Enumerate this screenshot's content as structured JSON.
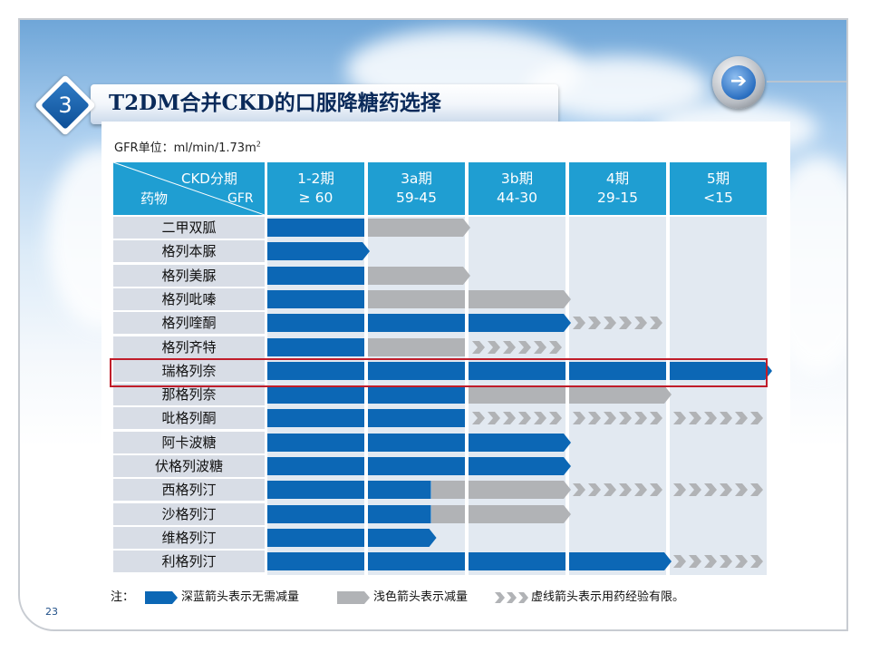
{
  "badge_number": "3",
  "title": "T2DM合并CKD的口服降糖药选择",
  "unit_label": "GFR单位：ml/min/1.73m",
  "unit_superscript": "2",
  "header": {
    "ckd_label": "CKD分期",
    "drug_label": "药物",
    "gfr_label": "GFR",
    "columns": [
      {
        "stage": "1-2期",
        "range": "≥ 60"
      },
      {
        "stage": "3a期",
        "range": "59-45"
      },
      {
        "stage": "3b期",
        "range": "44-30"
      },
      {
        "stage": "4期",
        "range": "29-15"
      },
      {
        "stage": "5期",
        "range": "<15"
      }
    ]
  },
  "drugs": [
    {
      "name": "二甲双胍",
      "segments": [
        {
          "type": "dark",
          "from": 0,
          "to": 1
        },
        {
          "type": "light",
          "from": 1,
          "to": 2,
          "arrow": true
        }
      ]
    },
    {
      "name": "格列本脲",
      "segments": [
        {
          "type": "dark",
          "from": 0,
          "to": 1,
          "arrow": true
        }
      ]
    },
    {
      "name": "格列美脲",
      "segments": [
        {
          "type": "dark",
          "from": 0,
          "to": 1
        },
        {
          "type": "light",
          "from": 1,
          "to": 2,
          "arrow": true
        }
      ]
    },
    {
      "name": "格列吡嗪",
      "segments": [
        {
          "type": "dark",
          "from": 0,
          "to": 1
        },
        {
          "type": "light",
          "from": 1,
          "to": 2
        },
        {
          "type": "light",
          "from": 2,
          "to": 3,
          "arrow": true
        }
      ]
    },
    {
      "name": "格列喹酮",
      "segments": [
        {
          "type": "dark",
          "from": 0,
          "to": 1
        },
        {
          "type": "dark",
          "from": 1,
          "to": 2
        },
        {
          "type": "dark",
          "from": 2,
          "to": 3,
          "arrow": true
        },
        {
          "type": "dashed",
          "from": 3,
          "to": 4
        }
      ]
    },
    {
      "name": "格列齐特",
      "segments": [
        {
          "type": "dark",
          "from": 0,
          "to": 1
        },
        {
          "type": "light",
          "from": 1,
          "to": 2
        },
        {
          "type": "dashed",
          "from": 2,
          "to": 3
        }
      ]
    },
    {
      "name": "瑞格列奈",
      "segments": [
        {
          "type": "dark",
          "from": 0,
          "to": 1
        },
        {
          "type": "dark",
          "from": 1,
          "to": 2
        },
        {
          "type": "dark",
          "from": 2,
          "to": 3
        },
        {
          "type": "dark",
          "from": 3,
          "to": 4
        },
        {
          "type": "dark",
          "from": 4,
          "to": 5,
          "arrow": true
        }
      ]
    },
    {
      "name": "那格列奈",
      "segments": [
        {
          "type": "dark",
          "from": 0,
          "to": 1
        },
        {
          "type": "dark",
          "from": 1,
          "to": 2
        },
        {
          "type": "light",
          "from": 2,
          "to": 3
        },
        {
          "type": "light",
          "from": 3,
          "to": 4,
          "arrow": true
        }
      ]
    },
    {
      "name": "吡格列酮",
      "segments": [
        {
          "type": "dark",
          "from": 0,
          "to": 1
        },
        {
          "type": "dark",
          "from": 1,
          "to": 2
        },
        {
          "type": "dashed",
          "from": 2,
          "to": 3
        },
        {
          "type": "dashed",
          "from": 3,
          "to": 4
        },
        {
          "type": "dashed",
          "from": 4,
          "to": 5
        }
      ]
    },
    {
      "name": "阿卡波糖",
      "segments": [
        {
          "type": "dark",
          "from": 0,
          "to": 1
        },
        {
          "type": "dark",
          "from": 1,
          "to": 2
        },
        {
          "type": "dark",
          "from": 2,
          "to": 3,
          "arrow": true
        }
      ]
    },
    {
      "name": "伏格列波糖",
      "segments": [
        {
          "type": "dark",
          "from": 0,
          "to": 1
        },
        {
          "type": "dark",
          "from": 1,
          "to": 2
        },
        {
          "type": "dark",
          "from": 2,
          "to": 3,
          "arrow": true
        }
      ]
    },
    {
      "name": "西格列汀",
      "segments": [
        {
          "type": "dark",
          "from": 0,
          "to": 1
        },
        {
          "type": "dark",
          "from": 1,
          "to": 1.65
        },
        {
          "type": "light",
          "from": 1.65,
          "to": 2
        },
        {
          "type": "light",
          "from": 2,
          "to": 3,
          "arrow": true
        },
        {
          "type": "dashed",
          "from": 3,
          "to": 4
        },
        {
          "type": "dashed",
          "from": 4,
          "to": 5
        }
      ]
    },
    {
      "name": "沙格列汀",
      "segments": [
        {
          "type": "dark",
          "from": 0,
          "to": 1
        },
        {
          "type": "dark",
          "from": 1,
          "to": 1.65
        },
        {
          "type": "light",
          "from": 1.65,
          "to": 2
        },
        {
          "type": "light",
          "from": 2,
          "to": 3,
          "arrow": true
        }
      ]
    },
    {
      "name": "维格列汀",
      "segments": [
        {
          "type": "dark",
          "from": 0,
          "to": 1
        },
        {
          "type": "dark",
          "from": 1,
          "to": 1.65,
          "arrow": true
        }
      ]
    },
    {
      "name": "利格列汀",
      "segments": [
        {
          "type": "dark",
          "from": 0,
          "to": 1
        },
        {
          "type": "dark",
          "from": 1,
          "to": 2
        },
        {
          "type": "dark",
          "from": 2,
          "to": 3
        },
        {
          "type": "dark",
          "from": 3,
          "to": 4,
          "arrow": true
        },
        {
          "type": "dashed",
          "from": 4,
          "to": 5
        }
      ]
    }
  ],
  "highlighted_drug": "瑞格列奈",
  "legend": {
    "prefix": "注：",
    "dark_text": "深蓝箭头表示无需减量",
    "light_text": "浅色箭头表示减量",
    "dashed_text": "虚线箭头表示用药经验有限。"
  },
  "colors": {
    "dark": "#0c67b5",
    "light": "#b1b3b6",
    "header": "#1f9ed2",
    "highlight": "#c01d2a"
  },
  "page_number": "23"
}
